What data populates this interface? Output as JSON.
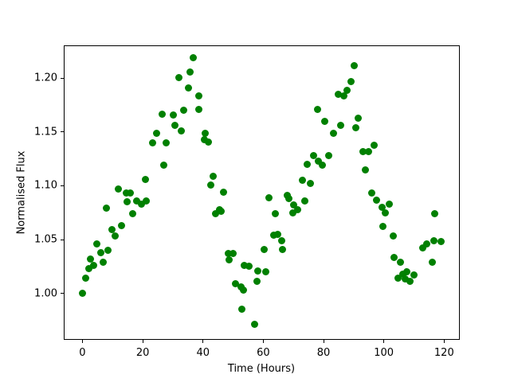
{
  "figure": {
    "background_color": "#ffffff"
  },
  "chart_data": {
    "type": "scatter",
    "title": "",
    "xlabel": "Time (Hours)",
    "ylabel": "Normalised Flux",
    "grid": false,
    "legend": "none",
    "marker_color": "#008000",
    "marker_diameter_px": 9,
    "xlim": [
      -6.2,
      125.2
    ],
    "ylim": [
      0.9567,
      1.2307
    ],
    "xtick_values": [
      0,
      20,
      40,
      60,
      80,
      100,
      120
    ],
    "xtick_labels": [
      "0",
      "20",
      "40",
      "60",
      "80",
      "100",
      "120"
    ],
    "ytick_values": [
      1.0,
      1.05,
      1.1,
      1.15,
      1.2
    ],
    "ytick_labels": [
      "1.00",
      "1.05",
      "1.10",
      "1.15",
      "1.20"
    ],
    "series": [
      {
        "name": "normalised-flux-points",
        "x": [
          0.0,
          1.0,
          2.0,
          2.6,
          3.6,
          4.7,
          6.0,
          6.8,
          7.9,
          8.6,
          9.7,
          10.8,
          11.8,
          13.1,
          14.5,
          14.7,
          16.0,
          16.8,
          17.9,
          19.5,
          20.8,
          21.1,
          23.2,
          24.5,
          26.4,
          26.9,
          27.9,
          30.1,
          30.8,
          31.9,
          32.7,
          33.5,
          35.1,
          35.6,
          36.7,
          38.5,
          38.5,
          40.4,
          40.6,
          41.7,
          42.5,
          43.5,
          44.1,
          45.4,
          45.9,
          46.7,
          48.3,
          48.6,
          50.1,
          50.9,
          52.5,
          53.0,
          53.3,
          53.8,
          55.4,
          57.0,
          57.8,
          58.3,
          60.2,
          60.7,
          61.8,
          63.4,
          64.1,
          64.9,
          66.0,
          66.5,
          67.9,
          68.6,
          69.7,
          70.2,
          71.3,
          73.1,
          73.9,
          74.7,
          75.5,
          76.8,
          77.9,
          78.4,
          79.7,
          80.5,
          81.6,
          83.4,
          84.8,
          85.8,
          86.6,
          87.9,
          89.0,
          90.1,
          90.8,
          91.6,
          93.2,
          93.8,
          94.8,
          95.9,
          96.7,
          97.7,
          99.3,
          99.8,
          100.6,
          101.7,
          103.0,
          103.5,
          104.6,
          105.6,
          106.4,
          107.2,
          107.7,
          108.8,
          110.1,
          112.8,
          114.1,
          116.2,
          116.7,
          117.0,
          118.9
        ],
        "y": [
          1.0,
          1.014,
          1.023,
          1.032,
          1.026,
          1.046,
          1.038,
          1.029,
          1.079,
          1.04,
          1.059,
          1.053,
          1.097,
          1.063,
          1.093,
          1.085,
          1.093,
          1.074,
          1.086,
          1.083,
          1.106,
          1.086,
          1.14,
          1.149,
          1.167,
          1.119,
          1.14,
          1.166,
          1.156,
          1.201,
          1.151,
          1.17,
          1.191,
          1.206,
          1.219,
          1.184,
          1.171,
          1.143,
          1.149,
          1.141,
          1.101,
          1.109,
          1.074,
          1.078,
          1.076,
          1.094,
          1.037,
          1.031,
          1.037,
          1.009,
          1.006,
          0.985,
          1.003,
          1.026,
          1.025,
          0.971,
          1.011,
          1.021,
          1.041,
          1.02,
          1.089,
          1.054,
          1.074,
          1.055,
          1.049,
          1.041,
          1.091,
          1.088,
          1.075,
          1.082,
          1.078,
          1.105,
          1.086,
          1.12,
          1.102,
          1.128,
          1.171,
          1.123,
          1.119,
          1.16,
          1.128,
          1.149,
          1.185,
          1.156,
          1.184,
          1.189,
          1.197,
          1.212,
          1.154,
          1.163,
          1.132,
          1.115,
          1.132,
          1.093,
          1.138,
          1.087,
          1.08,
          1.062,
          1.075,
          1.083,
          1.053,
          1.033,
          1.014,
          1.029,
          1.018,
          1.013,
          1.02,
          1.011,
          1.017,
          1.042,
          1.046,
          1.029,
          1.049,
          1.074,
          1.048
        ]
      }
    ]
  }
}
